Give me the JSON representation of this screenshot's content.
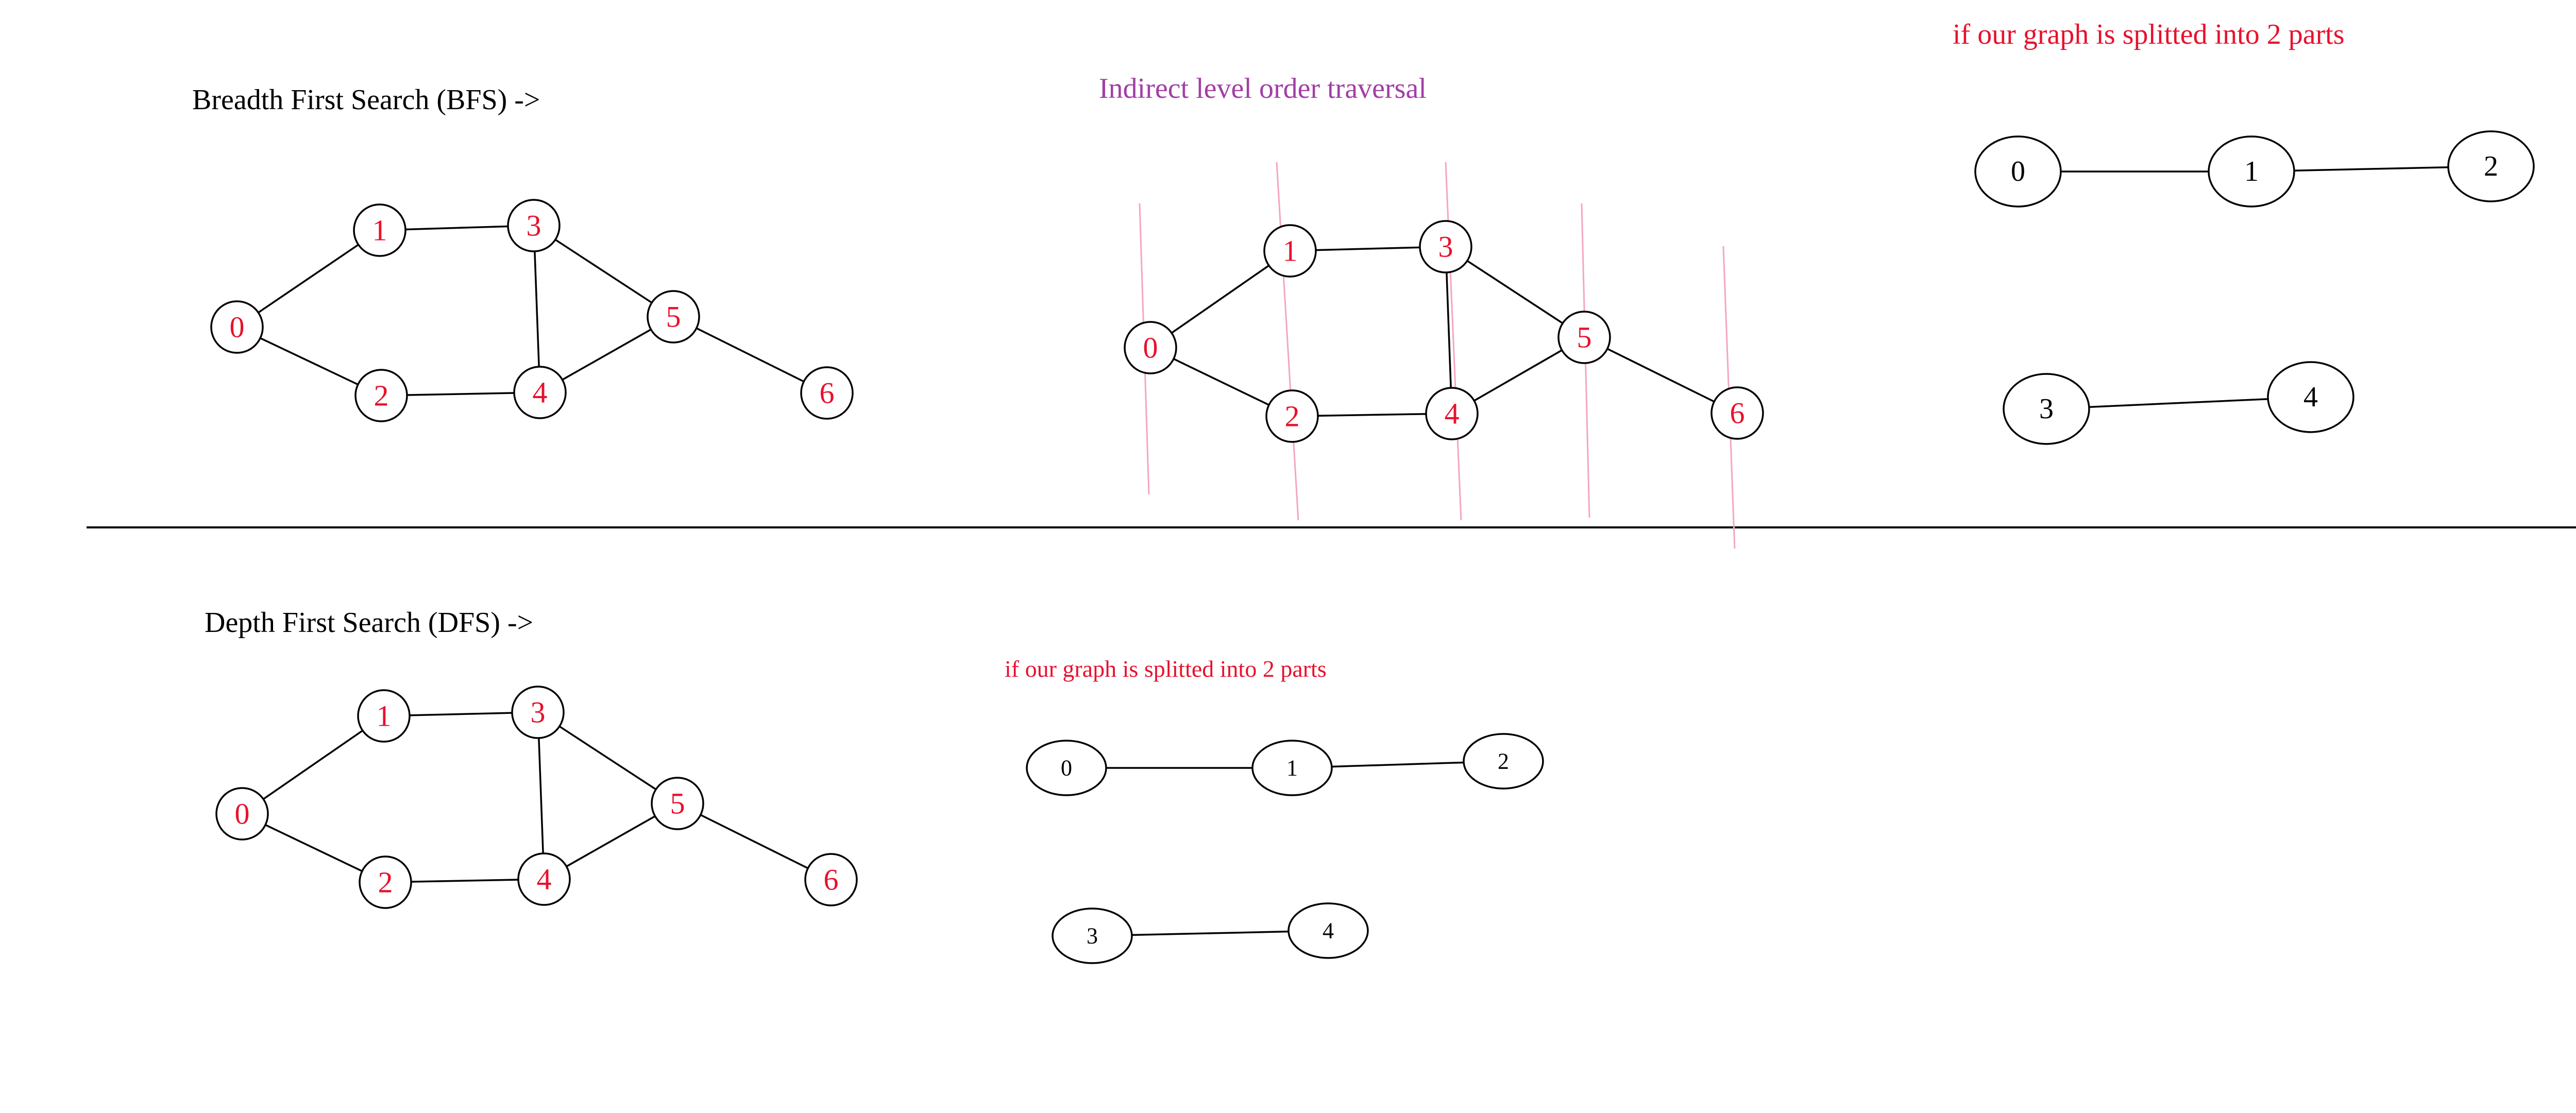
{
  "colors": {
    "node_text_red": "#e8112d",
    "node_text_black": "#000000",
    "edge": "#000000",
    "level_line": "#f4a6bf",
    "caption_purple": "#a23fa6",
    "caption_red": "#e8112d",
    "text_black": "#000000"
  },
  "bfs": {
    "title": "Breadth First Search (BFS) ->"
  },
  "dfs": {
    "title": "Depth First Search (DFS) ->"
  },
  "level_order": {
    "caption": "Indirect level order traversal"
  },
  "split_top": {
    "caption": "if our graph is splitted into 2 parts"
  },
  "split_bottom": {
    "caption": "if our graph is splitted into 2 parts"
  },
  "graph_main": {
    "nodes": [
      "0",
      "1",
      "2",
      "3",
      "4",
      "5",
      "6"
    ],
    "edges": [
      [
        "0",
        "1"
      ],
      [
        "0",
        "2"
      ],
      [
        "1",
        "3"
      ],
      [
        "2",
        "4"
      ],
      [
        "3",
        "4"
      ],
      [
        "3",
        "5"
      ],
      [
        "4",
        "5"
      ],
      [
        "5",
        "6"
      ]
    ]
  },
  "graph_split": {
    "nodes": [
      "0",
      "1",
      "2",
      "3",
      "4"
    ],
    "edges": [
      [
        "0",
        "1"
      ],
      [
        "1",
        "2"
      ],
      [
        "3",
        "4"
      ]
    ]
  }
}
